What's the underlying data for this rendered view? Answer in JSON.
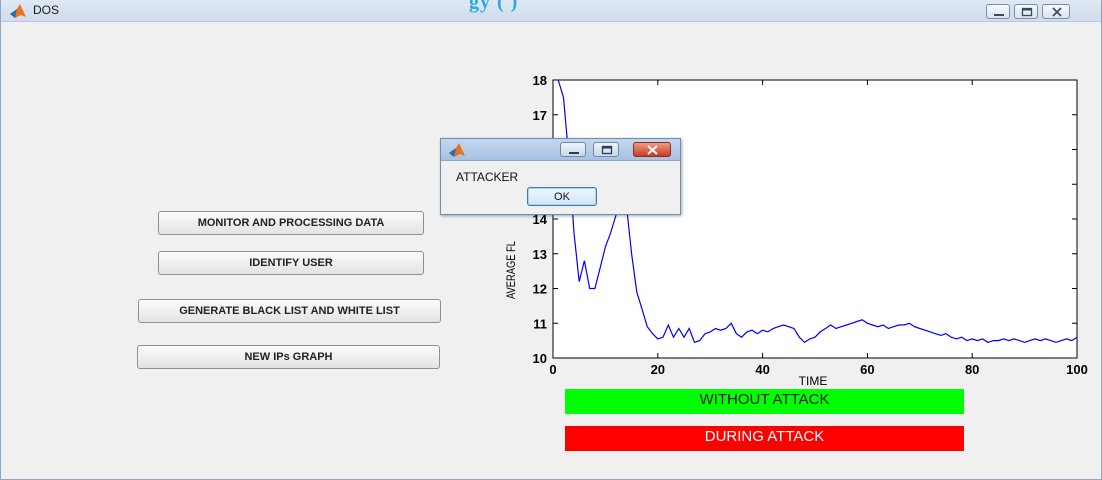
{
  "window": {
    "title": "DOS",
    "overlay_heading": "gy (           )"
  },
  "buttons": {
    "monitor": "MONITOR AND PROCESSING DATA",
    "identify": "IDENTIFY USER",
    "generate": "GENERATE BLACK LIST AND WHITE LIST",
    "new_ips": "NEW IPs GRAPH"
  },
  "status": {
    "without_attack": "WITHOUT ATTACK",
    "during_attack": "DURING ATTACK",
    "without_color": "#00ff00",
    "during_color": "#ff0000"
  },
  "dialog": {
    "message": "ATTACKER",
    "ok_label": "OK"
  },
  "icons": {
    "app": "matlab-icon",
    "minimize": "minimize-icon",
    "maximize": "maximize-icon",
    "close": "close-icon"
  },
  "chart_data": {
    "type": "line",
    "xlabel": "TIME",
    "ylabel": "AVERAGE FL",
    "xlim": [
      0,
      100
    ],
    "ylim": [
      10,
      18
    ],
    "xticks": [
      "0",
      "20",
      "40",
      "60",
      "80",
      "100"
    ],
    "yticks": [
      "10",
      "11",
      "12",
      "13",
      "14",
      "15",
      "16",
      "17",
      "18"
    ],
    "line_color": "#0000ff",
    "x": [
      1,
      2,
      3,
      4,
      5,
      6,
      7,
      8,
      9,
      10,
      11,
      12,
      13,
      14,
      15,
      16,
      17,
      18,
      19,
      20,
      21,
      22,
      23,
      24,
      25,
      26,
      27,
      28,
      29,
      30,
      31,
      32,
      33,
      34,
      35,
      36,
      37,
      38,
      39,
      40,
      41,
      42,
      43,
      44,
      45,
      46,
      47,
      48,
      49,
      50,
      51,
      52,
      53,
      54,
      55,
      56,
      57,
      58,
      59,
      60,
      61,
      62,
      63,
      64,
      65,
      66,
      67,
      68,
      69,
      70,
      71,
      72,
      73,
      74,
      75,
      76,
      77,
      78,
      79,
      80,
      81,
      82,
      83,
      84,
      85,
      86,
      87,
      88,
      89,
      90,
      91,
      92,
      93,
      94,
      95,
      96,
      97,
      98,
      99,
      100
    ],
    "y": [
      18,
      17.5,
      15.8,
      13.6,
      12.2,
      12.8,
      12.0,
      12.0,
      12.6,
      13.2,
      13.6,
      14.1,
      15.0,
      14.4,
      13.0,
      11.9,
      11.4,
      10.9,
      10.7,
      10.55,
      10.6,
      10.95,
      10.6,
      10.85,
      10.6,
      10.85,
      10.45,
      10.5,
      10.7,
      10.75,
      10.85,
      10.8,
      10.85,
      11.0,
      10.7,
      10.6,
      10.75,
      10.8,
      10.7,
      10.8,
      10.75,
      10.85,
      10.9,
      10.95,
      10.9,
      10.85,
      10.6,
      10.45,
      10.55,
      10.6,
      10.75,
      10.85,
      10.95,
      10.85,
      10.9,
      10.95,
      11.0,
      11.05,
      11.1,
      11.0,
      10.95,
      10.9,
      10.95,
      10.85,
      10.9,
      10.95,
      10.95,
      11.0,
      10.9,
      10.85,
      10.8,
      10.75,
      10.7,
      10.65,
      10.7,
      10.6,
      10.55,
      10.6,
      10.5,
      10.55,
      10.5,
      10.55,
      10.45,
      10.5,
      10.5,
      10.55,
      10.5,
      10.55,
      10.5,
      10.45,
      10.5,
      10.55,
      10.5,
      10.55,
      10.5,
      10.45,
      10.5,
      10.55,
      10.5,
      10.6
    ]
  }
}
